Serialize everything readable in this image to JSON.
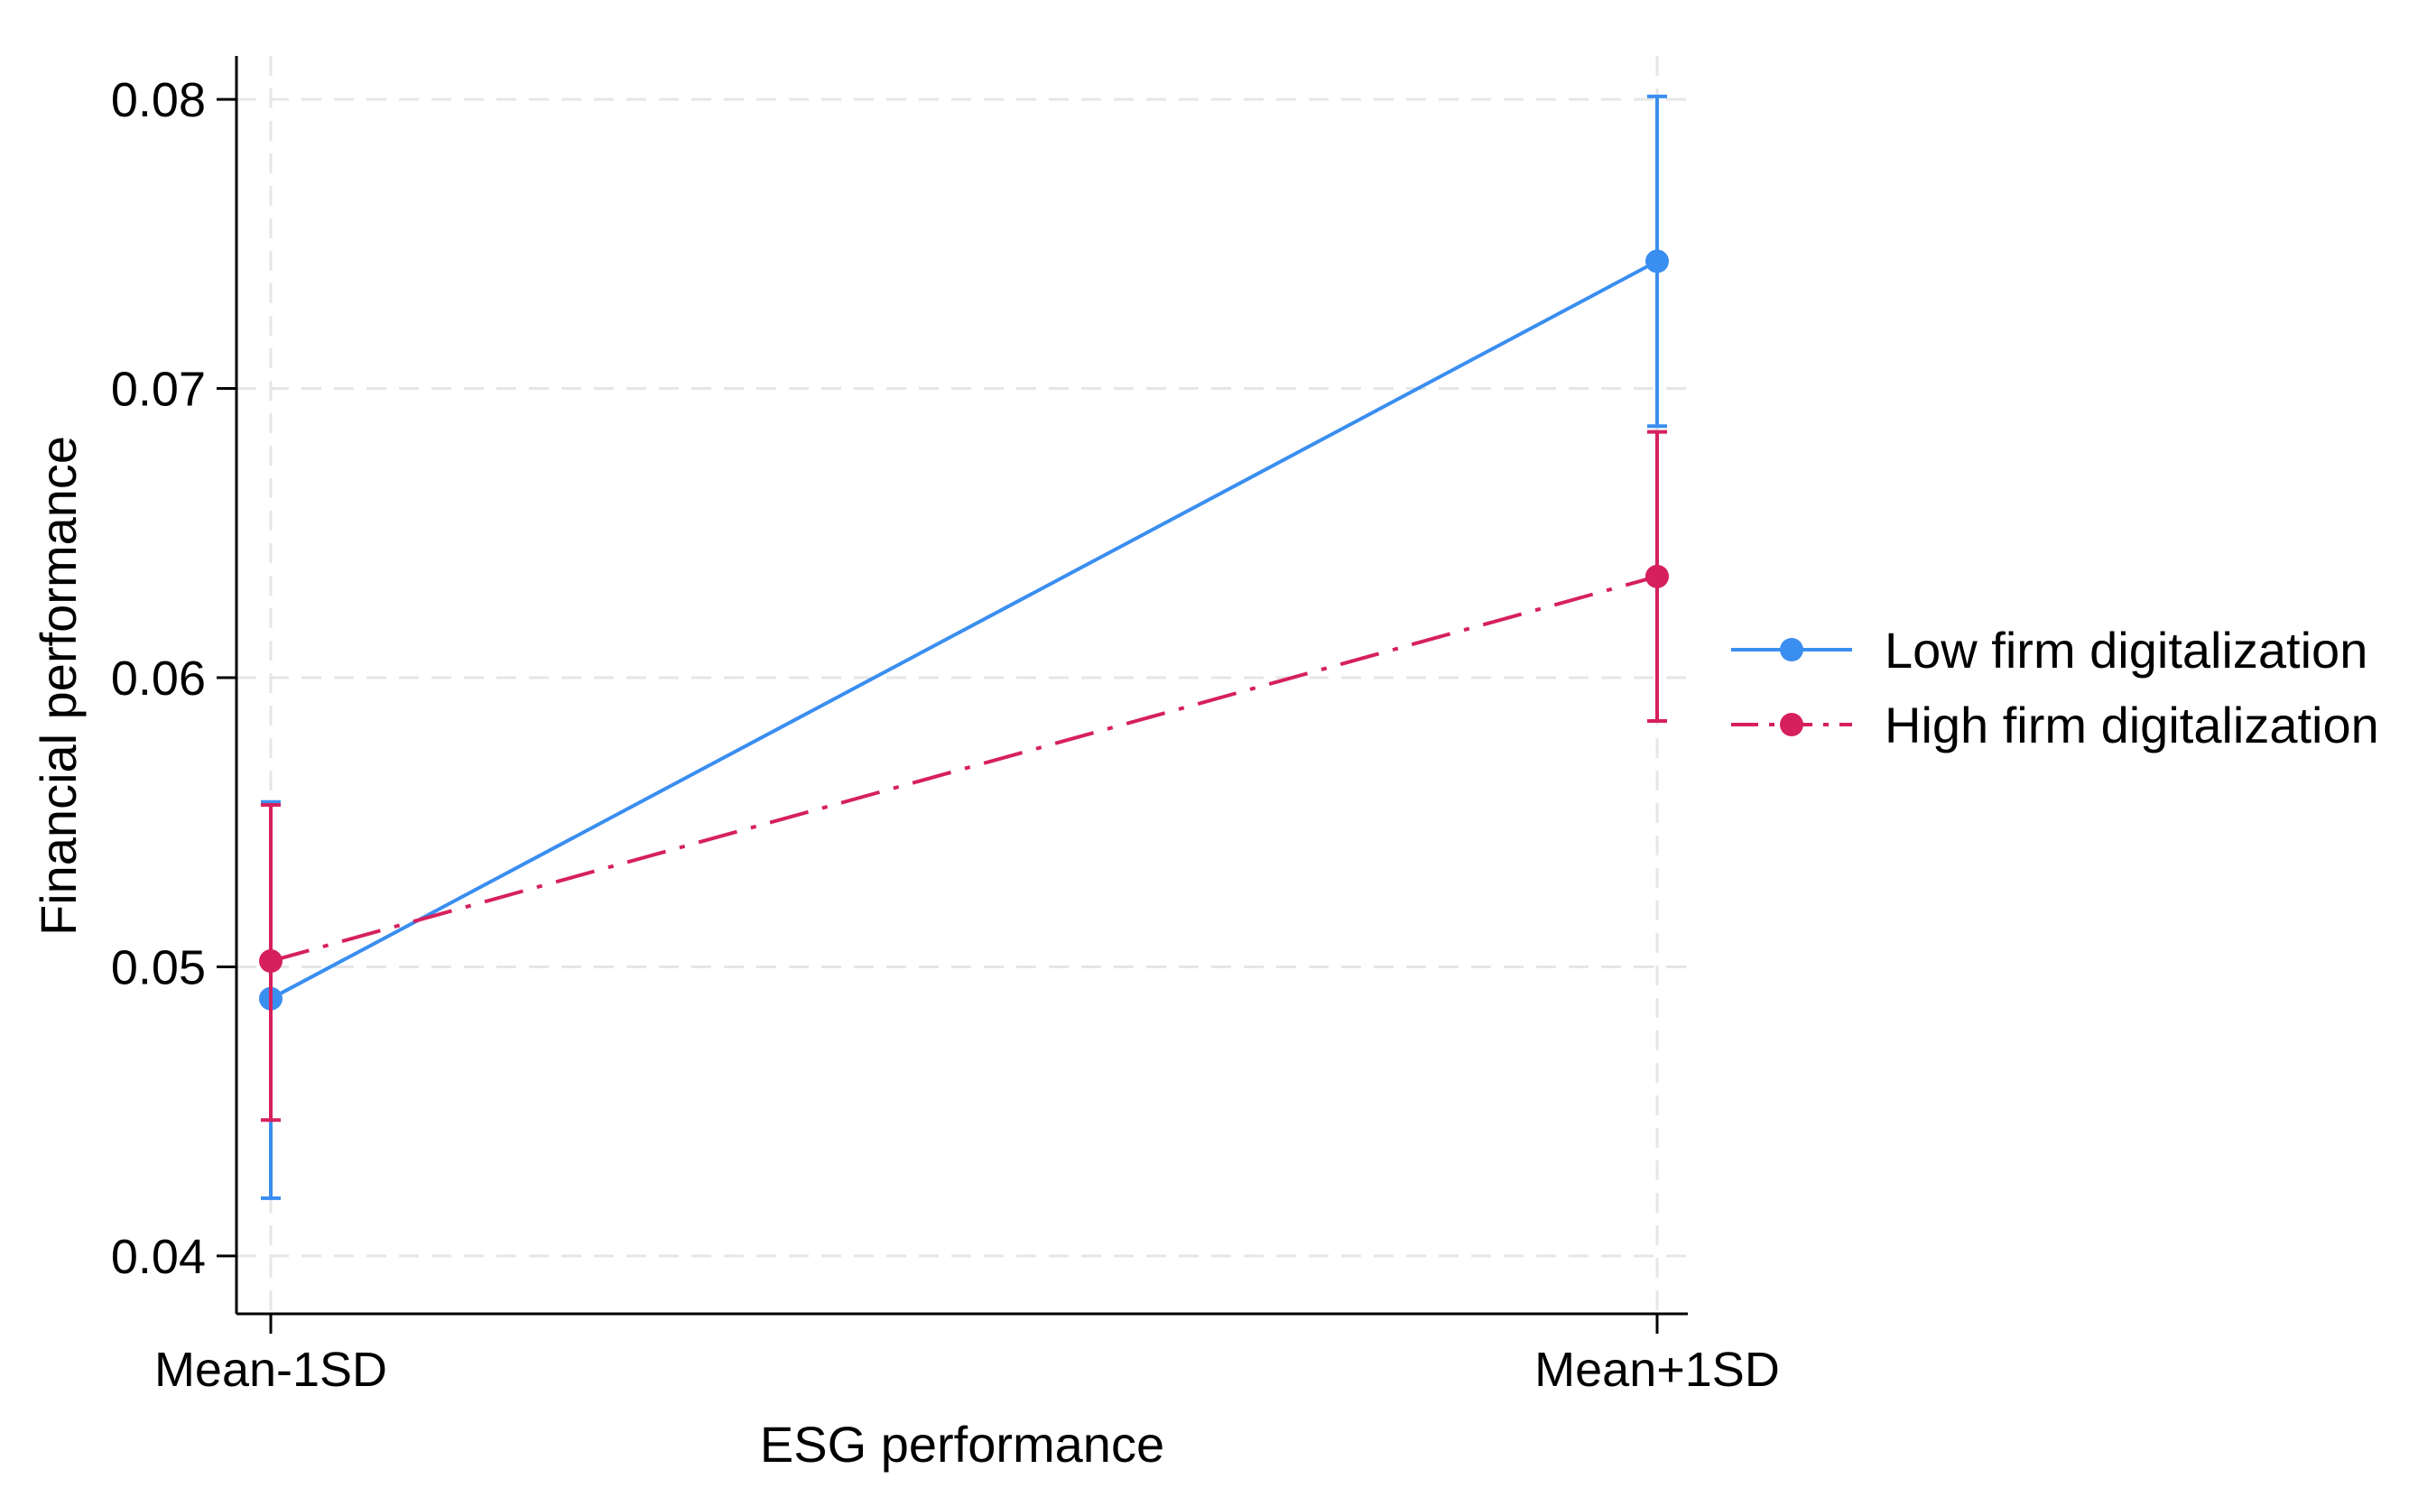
{
  "chart_data": {
    "type": "line",
    "title": "",
    "xlabel": "ESG performance",
    "ylabel": "Financial performance",
    "categories": [
      "Mean-1SD",
      "Mean+1SD"
    ],
    "ylim": [
      0.038,
      0.0815
    ],
    "yticks": [
      0.04,
      0.05,
      0.06,
      0.07,
      0.08
    ],
    "ytick_labels": [
      "0.04",
      "0.05",
      "0.06",
      "0.07",
      "0.08"
    ],
    "grid": true,
    "legend_position": "right",
    "series": [
      {
        "name": "Low firm digitalization",
        "color": "#3a8ef0",
        "line_style": "solid",
        "values": [
          0.0489,
          0.0744
        ],
        "ci_lower": [
          0.042,
          0.0687
        ],
        "ci_upper": [
          0.0557,
          0.0801
        ]
      },
      {
        "name": "High firm digitalization",
        "color": "#d6205e",
        "line_style": "dash-dot",
        "values": [
          0.0502,
          0.0635
        ],
        "ci_lower": [
          0.0447,
          0.0585
        ],
        "ci_upper": [
          0.0556,
          0.0685
        ]
      }
    ]
  }
}
